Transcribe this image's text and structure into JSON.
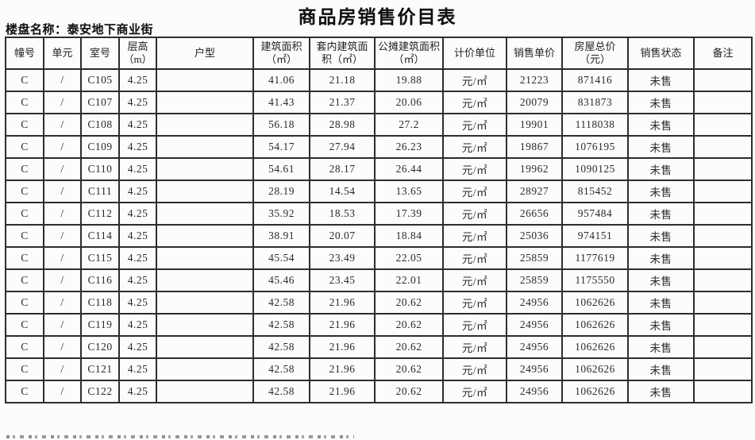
{
  "page": {
    "title": "商品房销售价目表",
    "project_label": "楼盘名称：泰安地下商业街"
  },
  "table": {
    "headers": [
      "幢号",
      "单元",
      "室号",
      "层高（m）",
      "户型",
      "建筑面积（㎡）",
      "套内建筑面积（㎡）",
      "公摊建筑面积（㎡）",
      "计价单位",
      "销售单价",
      "房屋总价（元）",
      "销售状态",
      "备注"
    ],
    "rows": [
      [
        "C",
        "/",
        "C105",
        "4.25",
        "",
        "41.06",
        "21.18",
        "19.88",
        "元/㎡",
        "21223",
        "871416",
        "未售",
        ""
      ],
      [
        "C",
        "/",
        "C107",
        "4.25",
        "",
        "41.43",
        "21.37",
        "20.06",
        "元/㎡",
        "20079",
        "831873",
        "未售",
        ""
      ],
      [
        "C",
        "/",
        "C108",
        "4.25",
        "",
        "56.18",
        "28.98",
        "27.2",
        "元/㎡",
        "19901",
        "1118038",
        "未售",
        ""
      ],
      [
        "C",
        "/",
        "C109",
        "4.25",
        "",
        "54.17",
        "27.94",
        "26.23",
        "元/㎡",
        "19867",
        "1076195",
        "未售",
        ""
      ],
      [
        "C",
        "/",
        "C110",
        "4.25",
        "",
        "54.61",
        "28.17",
        "26.44",
        "元/㎡",
        "19962",
        "1090125",
        "未售",
        ""
      ],
      [
        "C",
        "/",
        "C111",
        "4.25",
        "",
        "28.19",
        "14.54",
        "13.65",
        "元/㎡",
        "28927",
        "815452",
        "未售",
        ""
      ],
      [
        "C",
        "/",
        "C112",
        "4.25",
        "",
        "35.92",
        "18.53",
        "17.39",
        "元/㎡",
        "26656",
        "957484",
        "未售",
        ""
      ],
      [
        "C",
        "/",
        "C114",
        "4.25",
        "",
        "38.91",
        "20.07",
        "18.84",
        "元/㎡",
        "25036",
        "974151",
        "未售",
        ""
      ],
      [
        "C",
        "/",
        "C115",
        "4.25",
        "",
        "45.54",
        "23.49",
        "22.05",
        "元/㎡",
        "25859",
        "1177619",
        "未售",
        ""
      ],
      [
        "C",
        "/",
        "C116",
        "4.25",
        "",
        "45.46",
        "23.45",
        "22.01",
        "元/㎡",
        "25859",
        "1175550",
        "未售",
        ""
      ],
      [
        "C",
        "/",
        "C118",
        "4.25",
        "",
        "42.58",
        "21.96",
        "20.62",
        "元/㎡",
        "24956",
        "1062626",
        "未售",
        ""
      ],
      [
        "C",
        "/",
        "C119",
        "4.25",
        "",
        "42.58",
        "21.96",
        "20.62",
        "元/㎡",
        "24956",
        "1062626",
        "未售",
        ""
      ],
      [
        "C",
        "/",
        "C120",
        "4.25",
        "",
        "42.58",
        "21.96",
        "20.62",
        "元/㎡",
        "24956",
        "1062626",
        "未售",
        ""
      ],
      [
        "C",
        "/",
        "C121",
        "4.25",
        "",
        "42.58",
        "21.96",
        "20.62",
        "元/㎡",
        "24956",
        "1062626",
        "未售",
        ""
      ],
      [
        "C",
        "/",
        "C122",
        "4.25",
        "",
        "42.58",
        "21.96",
        "20.62",
        "元/㎡",
        "24956",
        "1062626",
        "未售",
        ""
      ]
    ]
  }
}
